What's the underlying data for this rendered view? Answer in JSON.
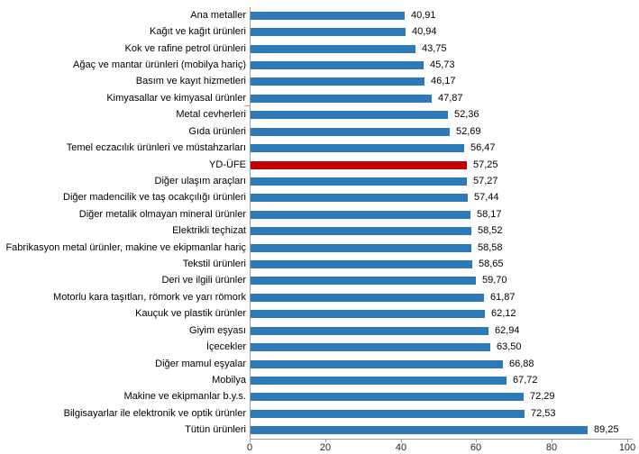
{
  "colors": {
    "background": "#FFFFFF",
    "bar_blue": "#2E79B8",
    "bar_red": "#C00000",
    "axis_line": "#9E9E9E",
    "text": "#000000"
  },
  "chart_data": {
    "type": "bar",
    "orientation": "horizontal",
    "title": "",
    "xlabel": "",
    "ylabel": "",
    "grid": false,
    "legend": "none",
    "xlim": [
      0,
      100
    ],
    "x_ticks": [
      0,
      20,
      40,
      60,
      80,
      100
    ],
    "decimal_separator": ",",
    "highlight_index": 9,
    "bar_color": "#2E79B8",
    "highlight_color": "#C00000",
    "categories": [
      "Ana metaller",
      "Kağıt ve kağıt ürünleri",
      "Kok ve rafine petrol ürünleri",
      "Ağaç ve mantar ürünleri (mobilya hariç)",
      "Basım ve kayıt hizmetleri",
      "Kimyasallar ve kimyasal ürünler",
      "Metal cevherleri",
      "Gıda ürünleri",
      "Temel eczacılık ürünleri ve müstahzarları",
      "YD-ÜFE",
      "Diğer ulaşım araçları",
      "Diğer madencilik ve taş ocakçılığı ürünleri",
      "Diğer metalik olmayan mineral ürünler",
      "Elektrikli teçhizat",
      "Fabrikasyon metal ürünler, makine ve ekipmanlar hariç",
      "Tekstil ürünleri",
      "Deri ve ilgili ürünler",
      "Motorlu kara taşıtları, römork ve yarı römork",
      "Kauçuk ve plastik ürünler",
      "Giyim eşyası",
      "İçecekler",
      "Diğer mamul eşyalar",
      "Mobilya",
      "Makine ve ekipmanlar b.y.s.",
      "Bilgisayarlar ile elektronik ve optik ürünler",
      "Tütün ürünleri"
    ],
    "values": [
      40.91,
      40.94,
      43.75,
      45.73,
      46.17,
      47.87,
      52.36,
      52.69,
      56.47,
      57.25,
      57.27,
      57.44,
      58.17,
      58.52,
      58.58,
      58.65,
      59.7,
      61.87,
      62.12,
      62.94,
      63.5,
      66.88,
      67.72,
      72.29,
      72.53,
      89.25
    ],
    "value_labels": [
      "40,91",
      "40,94",
      "43,75",
      "45,73",
      "46,17",
      "47,87",
      "52,36",
      "52,69",
      "56,47",
      "57,25",
      "57,27",
      "57,44",
      "58,17",
      "58,52",
      "58,58",
      "58,65",
      "59,70",
      "61,87",
      "62,12",
      "62,94",
      "63,50",
      "66,88",
      "67,72",
      "72,29",
      "72,53",
      "89,25"
    ]
  }
}
